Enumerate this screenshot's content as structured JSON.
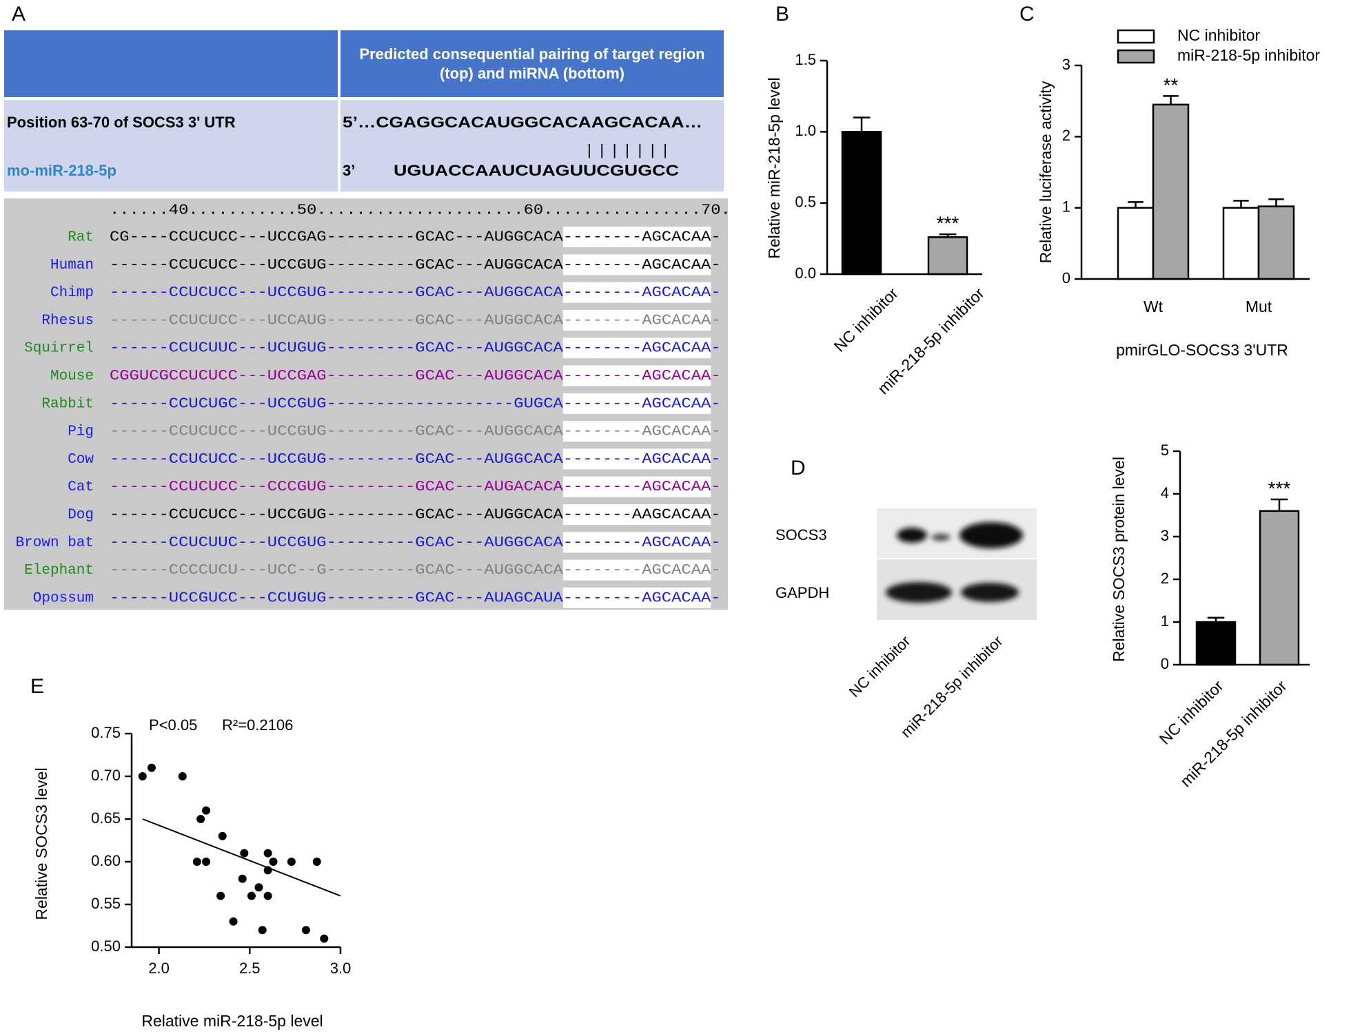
{
  "panel_labels": [
    "A",
    "B",
    "C",
    "D",
    "E"
  ],
  "alignment_table": {
    "header": "Predicted consequential pairing of target region (top) and miRNA (bottom)",
    "target_label": "Position 63-70 of SOCS3 3' UTR",
    "target_sequence": "5’…CGAGGCACAUGGCACAAGCACAA…",
    "pairing": "|||||||",
    "mirna_label": "mo-miR-218-5p",
    "mirna_end": "3’",
    "mirna_sequence": "UGUACCAAUCUAGUUCGUGCC"
  },
  "conservation": {
    "ruler": "......40...........50.....................60................70.",
    "rows": [
      {
        "species": "Rat",
        "species_color": "#1f8a1f",
        "color": "#000000",
        "sequence": "CG----CCUCUCC---UCCGAG---------GCAC---AUGGCACA--------AGCACAA-"
      },
      {
        "species": "Human",
        "species_color": "#1a1aee",
        "color": "#000000",
        "sequence": "------CCUCUCC---UCCGUG---------GCAC---AUGGCACA--------AGCACAA-"
      },
      {
        "species": "Chimp",
        "species_color": "#1a1aee",
        "color": "#1a1acc",
        "sequence": "------CCUCUCC---UCCGUG---------GCAC---AUGGCACA--------AGCACAA-"
      },
      {
        "species": "Rhesus",
        "species_color": "#1a1aee",
        "color": "#808080",
        "sequence": "------CCUCUCC---UCCAUG---------GCAC---AUGGCACA--------AGCACAA-"
      },
      {
        "species": "Squirrel",
        "species_color": "#1f8a1f",
        "color": "#1a1acc",
        "sequence": "------CCUCUUC---UCUGUG---------GCAC---AUGGCACA--------AGCACAA-"
      },
      {
        "species": "Mouse",
        "species_color": "#1f8a1f",
        "color": "#990099",
        "sequence": "CGGUCGCCUCUCC---UCCGAG---------GCAC---AUGGCACA--------AGCACAA-"
      },
      {
        "species": "Rabbit",
        "species_color": "#1f8a1f",
        "color": "#1a1acc",
        "sequence": "------CCUCUGC---UCCGUG-------------------GUGCA--------AGCACAA-"
      },
      {
        "species": "Pig",
        "species_color": "#1a1aee",
        "color": "#808080",
        "sequence": "------CCUCUCC---UCCGUG---------GCAC---AUGGCACA--------AGCACAA-"
      },
      {
        "species": "Cow",
        "species_color": "#1a1aee",
        "color": "#1a1acc",
        "sequence": "------CCUCUCC---UCCGUG---------GCAC---AUGGCACA--------AGCACAA-"
      },
      {
        "species": "Cat",
        "species_color": "#1a1aee",
        "color": "#990099",
        "sequence": "------CCUCUCC---CCCGUG---------GCAC---AUGACACA--------AGCACAA-"
      },
      {
        "species": "Dog",
        "species_color": "#1a1aee",
        "color": "#000000",
        "sequence": "------CCUCUCC---UCCGUG---------GCAC---AUGGCACA-------AAGCACAA-"
      },
      {
        "species": "Brown bat",
        "species_color": "#1a1aee",
        "color": "#1a1acc",
        "sequence": "------CCUCUUC---UCCGUG---------GCAC---AUGGCACA--------AGCACAA-"
      },
      {
        "species": "Elephant",
        "species_color": "#1f8a1f",
        "color": "#808080",
        "sequence": "------CCCCUCU---UCC--G---------GCAC---AUGGCACA--------AGCACAA-"
      },
      {
        "species": "Opossum",
        "species_color": "#1a1aee",
        "color": "#1a1acc",
        "sequence": "------UCCGUCC---CCUGUG---------GCAC---AUAGCAUA--------AGCACAA-"
      }
    ]
  },
  "blot": {
    "bands": [
      "SOCS3",
      "GAPDH"
    ],
    "lanes": [
      "NC inhibitor",
      "miR-218-5p inhibitor"
    ]
  },
  "chart_data": [
    {
      "type": "bar",
      "y_label": "Relative miR-218-5p level",
      "categories": [
        "NC inhibitor",
        "miR-218-5p inhibitor"
      ],
      "values": [
        1.0,
        0.26
      ],
      "errors": [
        0.1,
        0.02
      ],
      "colors": [
        "#000000",
        "#a6a6a6"
      ],
      "ylim": [
        0,
        1.5
      ],
      "yticks": [
        {
          "value": 0,
          "label": "0.0"
        },
        0.5,
        {
          "value": 1,
          "label": "1.0"
        },
        1.5
      ],
      "annotations": [
        {
          "text": "***",
          "category": "miR-218-5p inhibitor"
        }
      ]
    },
    {
      "type": "bar",
      "y_label": "Relative luciferase activity",
      "x_label": "pmirGLO-SOCS3 3'UTR",
      "categories": [
        "Wt",
        "Mut"
      ],
      "series": [
        {
          "name": "NC inhibitor",
          "color": "#ffffff",
          "values": [
            1.0,
            1.0
          ],
          "errors": [
            0.08,
            0.1
          ]
        },
        {
          "name": "miR-218-5p inhibitor",
          "color": "#a6a6a6",
          "values": [
            2.45,
            1.02
          ],
          "errors": [
            0.12,
            0.1
          ]
        }
      ],
      "legend": "top",
      "ylim": [
        0,
        3
      ],
      "yticks": [
        0,
        1,
        2,
        3
      ],
      "annotations": [
        {
          "text": "**",
          "category": "Wt",
          "series": "miR-218-5p inhibitor"
        }
      ]
    },
    {
      "type": "bar",
      "y_label": "Relative SOCS3 protein level",
      "categories": [
        "NC inhibitor",
        "miR-218-5p inhibitor"
      ],
      "values": [
        1.0,
        3.6
      ],
      "errors": [
        0.1,
        0.27
      ],
      "colors": [
        "#000000",
        "#a6a6a6"
      ],
      "ylim": [
        0,
        5
      ],
      "yticks": [
        0,
        1,
        2,
        3,
        4,
        5
      ],
      "annotations": [
        {
          "text": "***",
          "category": "miR-218-5p inhibitor"
        }
      ]
    },
    {
      "type": "scatter",
      "x_label": "Relative miR-218-5p level",
      "y_label": "Relative SOCS3 level",
      "annotations": [
        "P<0.05",
        "R²=0.2106"
      ],
      "color": "#000000",
      "x": [
        1.91,
        1.96,
        2.13,
        2.23,
        2.21,
        2.26,
        2.26,
        2.35,
        2.34,
        2.41,
        2.47,
        2.46,
        2.51,
        2.55,
        2.57,
        2.6,
        2.6,
        2.6,
        2.63,
        2.73,
        2.81,
        2.87,
        2.91
      ],
      "y": [
        0.7,
        0.71,
        0.7,
        0.65,
        0.6,
        0.6,
        0.66,
        0.63,
        0.56,
        0.53,
        0.61,
        0.58,
        0.56,
        0.57,
        0.52,
        0.61,
        0.59,
        0.56,
        0.6,
        0.6,
        0.52,
        0.6,
        0.51
      ],
      "fit_line": {
        "x": [
          1.91,
          3.0
        ],
        "y": [
          0.65,
          0.56
        ]
      },
      "xlim": [
        1.85,
        3.0
      ],
      "xticks": [
        {
          "value": 2,
          "label": "2.0"
        },
        2.5,
        {
          "value": 3,
          "label": "3.0"
        }
      ],
      "ylim": [
        0.5,
        0.75
      ],
      "yticks": [
        {
          "value": 0.5,
          "label": "0.50"
        },
        0.55,
        {
          "value": 0.6,
          "label": "0.60"
        },
        0.65,
        {
          "value": 0.7,
          "label": "0.70"
        },
        0.75
      ]
    }
  ]
}
